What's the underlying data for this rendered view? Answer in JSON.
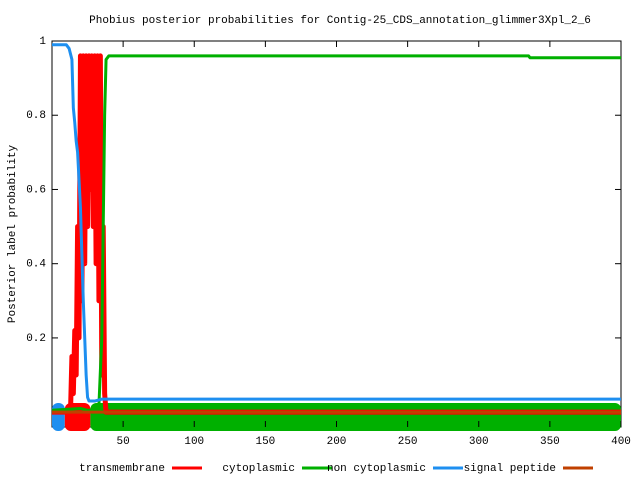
{
  "chart_data": {
    "type": "line",
    "title": "Phobius posterior probabilities for Contig-25_CDS_annotation_glimmer3Xpl_2_6",
    "ylabel": "Posterior label probability",
    "xlim": [
      0,
      400
    ],
    "xticks": [
      50,
      100,
      150,
      200,
      250,
      300,
      350,
      400
    ],
    "ylim": [
      -0.04,
      1
    ],
    "yticks": [
      0.2,
      0.4,
      0.6,
      0.8,
      1
    ],
    "series": [
      {
        "name": "transmembrane",
        "color": "#ff0000",
        "x": [
          0,
          13,
          14,
          15,
          16,
          17,
          18,
          19,
          20,
          21,
          22,
          23,
          24,
          25,
          26,
          27,
          28,
          29,
          30,
          31,
          32,
          33,
          34,
          35,
          36,
          37,
          38,
          400
        ],
        "values": [
          0,
          0,
          0.15,
          0.05,
          0.22,
          0.1,
          0.5,
          0.2,
          0.96,
          0.3,
          0.96,
          0.4,
          0.96,
          0.5,
          0.96,
          0.6,
          0.96,
          0.5,
          0.96,
          0.4,
          0.96,
          0.3,
          0.96,
          0.1,
          0.5,
          0.05,
          0,
          0
        ]
      },
      {
        "name": "cytoplasmic",
        "color": "#00b000",
        "x": [
          0,
          20,
          25,
          30,
          33,
          35,
          36,
          37,
          38,
          40,
          335,
          336,
          400
        ],
        "values": [
          0.005,
          0.01,
          0.005,
          0.005,
          0.02,
          0.2,
          0.5,
          0.8,
          0.95,
          0.96,
          0.96,
          0.955,
          0.955
        ]
      },
      {
        "name": "non cytoplasmic",
        "color": "#1e8ff0",
        "x": [
          0,
          10,
          12,
          14,
          15,
          16,
          17,
          18,
          20,
          22,
          24,
          25,
          26,
          28,
          30,
          35,
          40,
          400
        ],
        "values": [
          0.99,
          0.99,
          0.98,
          0.95,
          0.82,
          0.78,
          0.73,
          0.7,
          0.55,
          0.3,
          0.1,
          0.04,
          0.03,
          0.03,
          0.03,
          0.035,
          0.035,
          0.035
        ]
      },
      {
        "name": "signal peptide",
        "color": "#c04000",
        "x": [
          0,
          400
        ],
        "values": [
          0,
          0
        ]
      }
    ],
    "topology": [
      {
        "series": 2,
        "start": 0,
        "end": 9
      },
      {
        "series": 0,
        "start": 9,
        "end": 27
      },
      {
        "series": 1,
        "start": 27,
        "end": 400
      }
    ]
  }
}
